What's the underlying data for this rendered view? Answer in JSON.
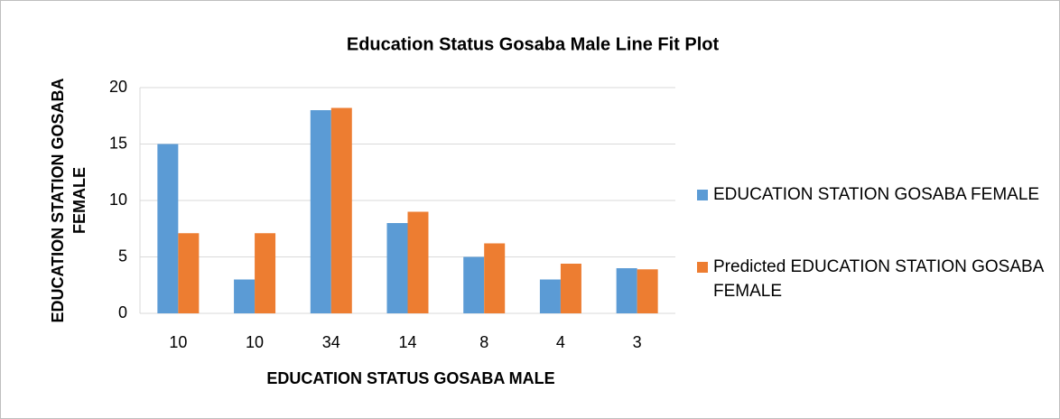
{
  "chart_data": {
    "type": "bar",
    "title": "Education Status Gosaba Male Line Fit  Plot",
    "x_label": "EDUCATION STATUS GOSABA MALE",
    "y_label": "EDUCATION STATION GOSABA FEMALE",
    "categories": [
      "10",
      "10",
      "34",
      "14",
      "8",
      "4",
      "3"
    ],
    "series": [
      {
        "name": "EDUCATION STATION GOSABA FEMALE",
        "color": "#5b9bd5",
        "values": [
          15,
          3,
          18,
          8,
          5,
          3,
          4
        ]
      },
      {
        "name": "Predicted EDUCATION STATION GOSABA FEMALE",
        "color": "#ed7d31",
        "values": [
          7.1,
          7.1,
          18.2,
          9,
          6.2,
          4.4,
          3.9
        ]
      }
    ],
    "ylim": [
      0,
      20
    ],
    "yticks": [
      0,
      5,
      10,
      15,
      20
    ],
    "grid": true,
    "legend": "right"
  }
}
